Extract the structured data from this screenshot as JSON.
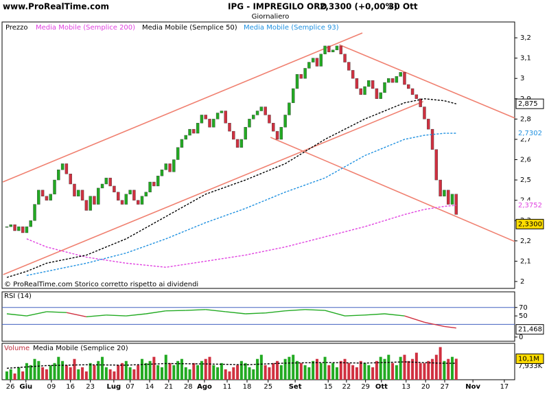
{
  "header": {
    "site": "www.ProRealTime.com",
    "title": "IPG - IMPREGILO ORD",
    "price": "2,3300 (+0,00%)",
    "date": "30 Ott",
    "period": "Giornaliero"
  },
  "chart_data": [
    {
      "type": "candlestick",
      "name": "Prezzo",
      "footer": "© ProRealTime.com  Storico corretto rispetto ai dividendi",
      "xlim": [
        -1.2,
        127.7
      ],
      "ylim": [
        1.966,
        3.278
      ],
      "yticks": [
        {
          "value": 3.2,
          "label": "3,2"
        },
        {
          "value": 3.1,
          "label": "3,1"
        },
        3,
        {
          "value": 2.9,
          "label": "2,9"
        },
        {
          "value": 2.8,
          "label": "2,8"
        },
        {
          "value": 2.7,
          "label": "2,7"
        },
        {
          "value": 2.6,
          "label": "2,6"
        },
        {
          "value": 2.5,
          "label": "2,5"
        },
        {
          "value": 2.4,
          "label": "2,4"
        },
        {
          "value": 2.3,
          "label": "2,3"
        },
        {
          "value": 2.2,
          "label": "2,2"
        },
        {
          "value": 2.1,
          "label": "2,1"
        },
        2
      ],
      "up_color": "#22aa22",
      "down_color": "#d03040",
      "closes": [
        2.27,
        2.28,
        2.25,
        2.27,
        2.24,
        2.27,
        2.3,
        2.38,
        2.45,
        2.42,
        2.4,
        2.43,
        2.5,
        2.55,
        2.58,
        2.53,
        2.48,
        2.42,
        2.45,
        2.4,
        2.35,
        2.42,
        2.38,
        2.46,
        2.48,
        2.51,
        2.47,
        2.44,
        2.4,
        2.38,
        2.43,
        2.45,
        2.4,
        2.38,
        2.42,
        2.44,
        2.49,
        2.47,
        2.52,
        2.55,
        2.58,
        2.54,
        2.6,
        2.66,
        2.7,
        2.72,
        2.75,
        2.73,
        2.78,
        2.82,
        2.8,
        2.76,
        2.8,
        2.83,
        2.84,
        2.78,
        2.74,
        2.7,
        2.66,
        2.7,
        2.76,
        2.8,
        2.82,
        2.84,
        2.86,
        2.82,
        2.78,
        2.74,
        2.7,
        2.76,
        2.82,
        2.88,
        2.95,
        3.02,
        3.0,
        3.05,
        3.08,
        3.1,
        3.06,
        3.12,
        3.16,
        3.13,
        3.14,
        3.16,
        3.12,
        3.08,
        3.04,
        3.0,
        2.95,
        2.92,
        2.96,
        2.99,
        2.95,
        2.9,
        2.93,
        2.98,
        3.0,
        2.98,
        3.01,
        3.03,
        2.97,
        2.95,
        2.92,
        2.9,
        2.86,
        2.8,
        2.75,
        2.65,
        2.5,
        2.42,
        2.45,
        2.38,
        2.43,
        2.33
      ],
      "value_label": "2,3300",
      "series": [
        {
          "name": "Media Mobile (Semplice 200)",
          "color": "#e040e0",
          "x": [
            0,
            5,
            10,
            20,
            30,
            40,
            50,
            60,
            70,
            80,
            90,
            100,
            105,
            110,
            113
          ],
          "values": [
            null,
            2.21,
            2.17,
            2.12,
            2.09,
            2.07,
            2.1,
            2.13,
            2.17,
            2.22,
            2.27,
            2.33,
            2.355,
            2.37,
            2.3752
          ],
          "value_label": "2,3752"
        },
        {
          "name": "Media Mobile (Semplice 50)",
          "color": "#000000",
          "x": [
            0,
            5,
            10,
            20,
            30,
            40,
            50,
            60,
            70,
            80,
            90,
            100,
            105,
            110,
            113
          ],
          "values": [
            2.02,
            2.05,
            2.09,
            2.13,
            2.21,
            2.32,
            2.43,
            2.5,
            2.58,
            2.7,
            2.8,
            2.88,
            2.9,
            2.89,
            2.875
          ],
          "value_label": "2,875"
        },
        {
          "name": "Media Mobile (Semplice 93)",
          "color": "#1e90e0",
          "x": [
            0,
            5,
            10,
            20,
            30,
            40,
            50,
            60,
            70,
            80,
            90,
            100,
            105,
            110,
            113
          ],
          "values": [
            null,
            2.03,
            2.05,
            2.09,
            2.14,
            2.21,
            2.29,
            2.36,
            2.44,
            2.51,
            2.62,
            2.7,
            2.72,
            2.73,
            2.7302
          ],
          "value_label": "2,7302"
        }
      ],
      "trendlines": [
        {
          "color": "#f08070",
          "x": [
            -1,
            89.4
          ],
          "y": [
            2.49,
            3.224
          ]
        },
        {
          "color": "#f08070",
          "x": [
            83.6,
            127.7
          ],
          "y": [
            3.166,
            2.805
          ]
        },
        {
          "color": "#f08070",
          "x": [
            -0.9,
            104.7
          ],
          "y": [
            2.034,
            2.886
          ]
        },
        {
          "color": "#f08070",
          "x": [
            66.3,
            127.7
          ],
          "y": [
            2.71,
            2.197
          ]
        }
      ]
    },
    {
      "type": "line",
      "name": "RSI (14)",
      "xlim": [
        -1.2,
        127.7
      ],
      "ylim": [
        -10,
        107
      ],
      "yticks": [
        70,
        50,
        0
      ],
      "hlines": [
        70,
        30
      ],
      "hline_color": "#4060c0",
      "up_color": "#22aa22",
      "down_color": "#d03040",
      "x": [
        0,
        5,
        10,
        15,
        20,
        25,
        30,
        35,
        40,
        45,
        50,
        55,
        60,
        65,
        70,
        75,
        80,
        85,
        90,
        95,
        100,
        105,
        110,
        113
      ],
      "values": [
        55,
        50,
        60,
        58,
        48,
        52,
        50,
        55,
        62,
        63,
        65,
        60,
        55,
        57,
        62,
        65,
        63,
        50,
        52,
        55,
        50,
        35,
        25,
        21.468
      ],
      "value_label": "21,468"
    },
    {
      "type": "bar",
      "name": "Volume",
      "xlim": [
        -1.2,
        127.7
      ],
      "ylim": [
        0,
        17.5
      ],
      "values": [
        4,
        5,
        3,
        6,
        4,
        8,
        7,
        10,
        9,
        6,
        5,
        7,
        8,
        11,
        9,
        7,
        6,
        10,
        5,
        6,
        4,
        8,
        7,
        9,
        11,
        6,
        5,
        4,
        7,
        8,
        9,
        6,
        5,
        7,
        10,
        8,
        9,
        11,
        7,
        6,
        12,
        8,
        7,
        9,
        10,
        6,
        5,
        8,
        7,
        9,
        10,
        11,
        7,
        6,
        8,
        5,
        4,
        6,
        7,
        9,
        8,
        6,
        5,
        10,
        12,
        7,
        6,
        8,
        9,
        7,
        10,
        11,
        12,
        9,
        8,
        7,
        6,
        9,
        10,
        8,
        11,
        7,
        8,
        6,
        9,
        10,
        8,
        7,
        6,
        9,
        8,
        7,
        6,
        9,
        11,
        10,
        12,
        8,
        7,
        11,
        12,
        9,
        10,
        13,
        8,
        8,
        9,
        10,
        12,
        15.7,
        9,
        10,
        11,
        10.1
      ],
      "value_label": "10,1M",
      "series": [
        {
          "name": "Media Mobile (Semplice 20)",
          "color": "#000000",
          "x": [
            0,
            10,
            20,
            30,
            40,
            50,
            60,
            70,
            80,
            90,
            100,
            110,
            113
          ],
          "values": [
            5.5,
            6.8,
            7.2,
            7.0,
            7.8,
            7.6,
            7.2,
            8.0,
            8.3,
            8.0,
            8.6,
            7.9,
            7.933
          ],
          "value_label": "7,933K"
        }
      ],
      "xticks": [
        {
          "value": 0.9,
          "label": "26"
        },
        {
          "value": 4.8,
          "label": "Giu"
        },
        {
          "value": 11.2,
          "label": "09"
        },
        {
          "value": 16,
          "label": "16"
        },
        {
          "value": 21,
          "label": "23"
        },
        {
          "value": 26.9,
          "label": "Lug"
        },
        {
          "value": 31,
          "label": "07"
        },
        {
          "value": 35.9,
          "label": "14"
        },
        {
          "value": 40.7,
          "label": "21"
        },
        {
          "value": 45.6,
          "label": "28"
        },
        {
          "value": 49.7,
          "label": "Ago"
        },
        {
          "value": 55.4,
          "label": "11"
        },
        {
          "value": 60.4,
          "label": "18"
        },
        {
          "value": 65.7,
          "label": "25"
        },
        {
          "value": 72.5,
          "label": "Set"
        },
        {
          "value": 80.8,
          "label": "15"
        },
        {
          "value": 85.4,
          "label": "22"
        },
        {
          "value": 90.2,
          "label": "29"
        },
        {
          "value": 94.2,
          "label": "Ott"
        },
        {
          "value": 100.4,
          "label": "13"
        },
        {
          "value": 105.3,
          "label": "20"
        },
        {
          "value": 110.1,
          "label": "27"
        },
        {
          "value": 117.2,
          "label": "Nov"
        },
        {
          "value": 125.1,
          "label": "17"
        }
      ]
    }
  ]
}
